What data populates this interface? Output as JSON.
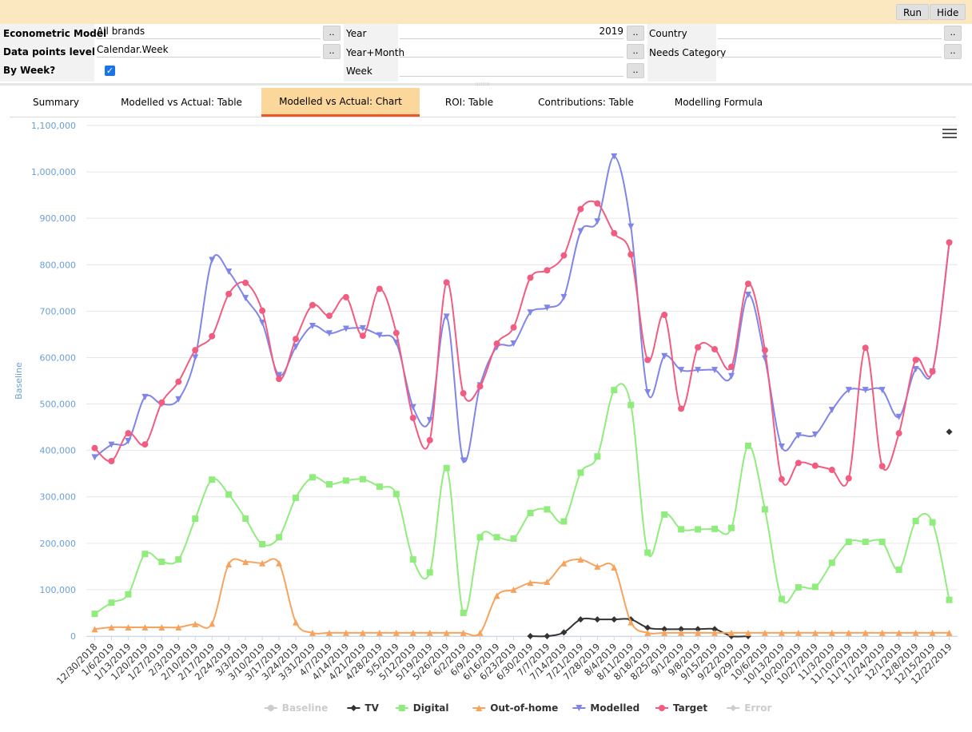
{
  "toolbar": {
    "run_label": "Run",
    "hide_label": "Hide"
  },
  "filters": {
    "econometric_model_label": "Econometric Model",
    "econometric_model_value": "All brands",
    "data_points_level_label": "Data points level",
    "data_points_level_value": "Calendar.Week",
    "by_week_label": "By Week?",
    "by_week_checked": true,
    "year_label": "Year",
    "year_value": "2019",
    "year_month_label": "Year+Month",
    "year_month_value": "",
    "week_label": "Week",
    "week_value": "",
    "country_label": "Country",
    "country_value": "",
    "needs_category_label": "Needs Category",
    "needs_category_value": "",
    "picker_label": ".."
  },
  "tabs": [
    {
      "label": "Summary"
    },
    {
      "label": "Modelled vs Actual: Table"
    },
    {
      "label": "Modelled vs Actual: Chart",
      "active": true
    },
    {
      "label": "ROI: Table"
    },
    {
      "label": "Contributions: Table"
    },
    {
      "label": "Modelling Formula"
    }
  ],
  "chart_data": {
    "type": "line",
    "title": "",
    "ylabel": "Baseline",
    "ylim": [
      0,
      1100000
    ],
    "yticks": [
      "0",
      "100,000",
      "200,000",
      "300,000",
      "400,000",
      "500,000",
      "600,000",
      "700,000",
      "800,000",
      "900,000",
      "1,000,000",
      "1,100,000"
    ],
    "categories": [
      "12/30/2018",
      "1/6/2019",
      "1/13/2019",
      "1/20/2019",
      "1/27/2019",
      "2/3/2019",
      "2/10/2019",
      "2/17/2019",
      "2/24/2019",
      "3/3/2019",
      "3/10/2019",
      "3/17/2019",
      "3/24/2019",
      "3/31/2019",
      "4/7/2019",
      "4/14/2019",
      "4/21/2019",
      "4/28/2019",
      "5/5/2019",
      "5/12/2019",
      "5/19/2019",
      "5/26/2019",
      "6/2/2019",
      "6/9/2019",
      "6/16/2019",
      "6/23/2019",
      "6/30/2019",
      "7/7/2019",
      "7/14/2019",
      "7/21/2019",
      "7/28/2019",
      "8/4/2019",
      "8/11/2019",
      "8/18/2019",
      "8/25/2019",
      "9/1/2019",
      "9/8/2019",
      "9/15/2019",
      "9/22/2019",
      "9/29/2019",
      "10/6/2019",
      "10/13/2019",
      "10/20/2019",
      "10/27/2019",
      "11/3/2019",
      "11/10/2019",
      "11/17/2019",
      "11/24/2019",
      "12/1/2019",
      "12/8/2019",
      "12/15/2019",
      "12/22/2019"
    ],
    "legend_position": "bottom",
    "legend": [
      {
        "name": "Baseline",
        "color": "#cccccc",
        "marker": "circle",
        "hidden": true
      },
      {
        "name": "TV",
        "color": "#333333",
        "marker": "diamond"
      },
      {
        "name": "Digital",
        "color": "#90ed7d",
        "marker": "square"
      },
      {
        "name": "Out-of-home",
        "color": "#f7a35c",
        "marker": "triangle"
      },
      {
        "name": "Modelled",
        "color": "#8085e9",
        "marker": "triangle-down"
      },
      {
        "name": "Target",
        "color": "#f15c80",
        "marker": "circle"
      },
      {
        "name": "Error",
        "color": "#cccccc",
        "marker": "diamond",
        "hidden": true
      }
    ],
    "series": [
      {
        "name": "TV",
        "color": "#333333",
        "marker": "diamond",
        "values": [
          null,
          null,
          null,
          null,
          null,
          null,
          null,
          null,
          null,
          null,
          null,
          null,
          null,
          null,
          null,
          null,
          null,
          null,
          null,
          null,
          null,
          null,
          null,
          null,
          null,
          null,
          0,
          0,
          8000,
          36000,
          36000,
          36000,
          36000,
          18000,
          15000,
          15000,
          15000,
          15000,
          0,
          0,
          null,
          null,
          null,
          null,
          null,
          null,
          null,
          null,
          null,
          null,
          null,
          440000
        ]
      },
      {
        "name": "Digital",
        "color": "#90ed7d",
        "marker": "square",
        "values": [
          48000,
          72000,
          90000,
          177000,
          160000,
          165000,
          253000,
          337000,
          305000,
          253000,
          198000,
          213000,
          298000,
          342000,
          327000,
          335000,
          338000,
          322000,
          306000,
          165000,
          137000,
          362000,
          50000,
          213000,
          213000,
          210000,
          265000,
          273000,
          247000,
          352000,
          387000,
          530000,
          498000,
          180000,
          262000,
          230000,
          230000,
          231000,
          233000,
          410000,
          273000,
          80000,
          105000,
          106000,
          158000,
          203000,
          203000,
          203000,
          143000,
          248000,
          245000,
          78000
        ]
      },
      {
        "name": "Out-of-home",
        "color": "#f7a35c",
        "marker": "triangle",
        "values": [
          15000,
          19000,
          19000,
          19000,
          19000,
          19000,
          26000,
          27000,
          155000,
          160000,
          157000,
          157000,
          30000,
          7000,
          7000,
          7000,
          7000,
          7000,
          7000,
          7000,
          7000,
          7000,
          7000,
          7000,
          87000,
          100000,
          115000,
          117000,
          157000,
          165000,
          150000,
          148000,
          30000,
          7000,
          7000,
          7000,
          7000,
          7000,
          7000,
          7000,
          7000,
          7000,
          7000,
          7000,
          7000,
          7000,
          7000,
          7000,
          7000,
          7000,
          7000,
          7000
        ]
      },
      {
        "name": "Modelled",
        "color": "#8085e9",
        "marker": "triangle-down",
        "values": [
          385000,
          412000,
          420000,
          515000,
          500000,
          510000,
          600000,
          810000,
          785000,
          728000,
          675000,
          562000,
          623000,
          668000,
          652000,
          662000,
          663000,
          648000,
          632000,
          493000,
          465000,
          688000,
          378000,
          540000,
          622000,
          630000,
          697000,
          707000,
          730000,
          872000,
          893000,
          1033000,
          882000,
          525000,
          603000,
          573000,
          573000,
          573000,
          560000,
          735000,
          598000,
          408000,
          432000,
          434000,
          487000,
          530000,
          530000,
          530000,
          472000,
          575000,
          570000,
          845000
        ]
      },
      {
        "name": "Target",
        "color": "#f15c80",
        "marker": "circle",
        "values": [
          405000,
          377000,
          437000,
          413000,
          503000,
          548000,
          616000,
          646000,
          737000,
          761000,
          701000,
          554000,
          640000,
          713000,
          690000,
          730000,
          647000,
          748000,
          653000,
          470000,
          422000,
          762000,
          523000,
          538000,
          630000,
          665000,
          772000,
          788000,
          820000,
          920000,
          932000,
          868000,
          822000,
          595000,
          692000,
          490000,
          622000,
          618000,
          580000,
          759000,
          616000,
          338000,
          373000,
          367000,
          358000,
          340000,
          621000,
          366000,
          437000,
          595000,
          570000,
          848000
        ]
      }
    ]
  }
}
